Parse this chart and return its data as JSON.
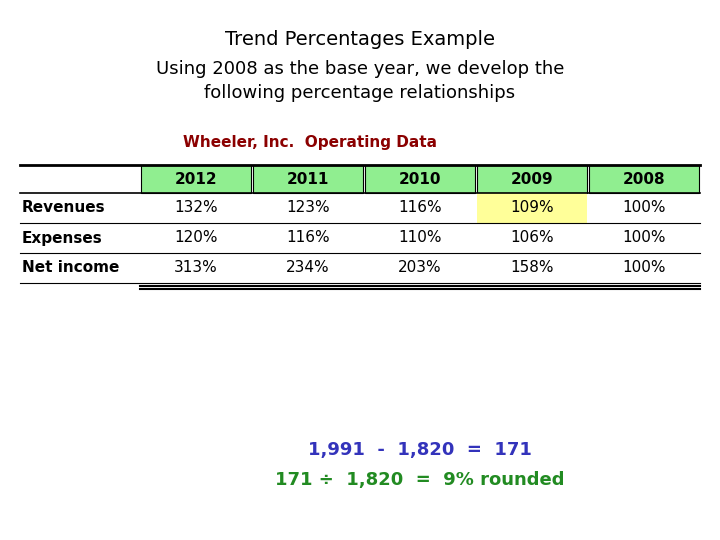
{
  "title": "Trend Percentages Example",
  "subtitle_line1": "Using 2008 as the base year, we develop the",
  "subtitle_line2": "following percentage relationships",
  "table_title": "Wheeler, Inc.  Operating Data",
  "table_title_color": "#8B0000",
  "columns": [
    "2012",
    "2011",
    "2010",
    "2009",
    "2008"
  ],
  "rows": [
    {
      "label": "Revenues",
      "values": [
        "132%",
        "123%",
        "116%",
        "109%",
        "100%"
      ]
    },
    {
      "label": "Expenses",
      "values": [
        "120%",
        "116%",
        "110%",
        "106%",
        "100%"
      ]
    },
    {
      "label": "Net income",
      "values": [
        "313%",
        "234%",
        "203%",
        "158%",
        "100%"
      ]
    }
  ],
  "header_bg": "#90EE90",
  "highlighted_cell": {
    "row": 0,
    "col": 3,
    "bg": "#FFFF99"
  },
  "formula_line1": "1,991  -  1,820  =  171",
  "formula_line1_color": "#3333BB",
  "formula_line2": "171 ÷  1,820  =  9% rounded",
  "formula_line2_color": "#228B22",
  "bg_color": "#FFFFFF",
  "title_fontsize": 14,
  "subtitle_fontsize": 13,
  "table_title_fontsize": 11,
  "table_fontsize": 11,
  "formula_fontsize": 13
}
